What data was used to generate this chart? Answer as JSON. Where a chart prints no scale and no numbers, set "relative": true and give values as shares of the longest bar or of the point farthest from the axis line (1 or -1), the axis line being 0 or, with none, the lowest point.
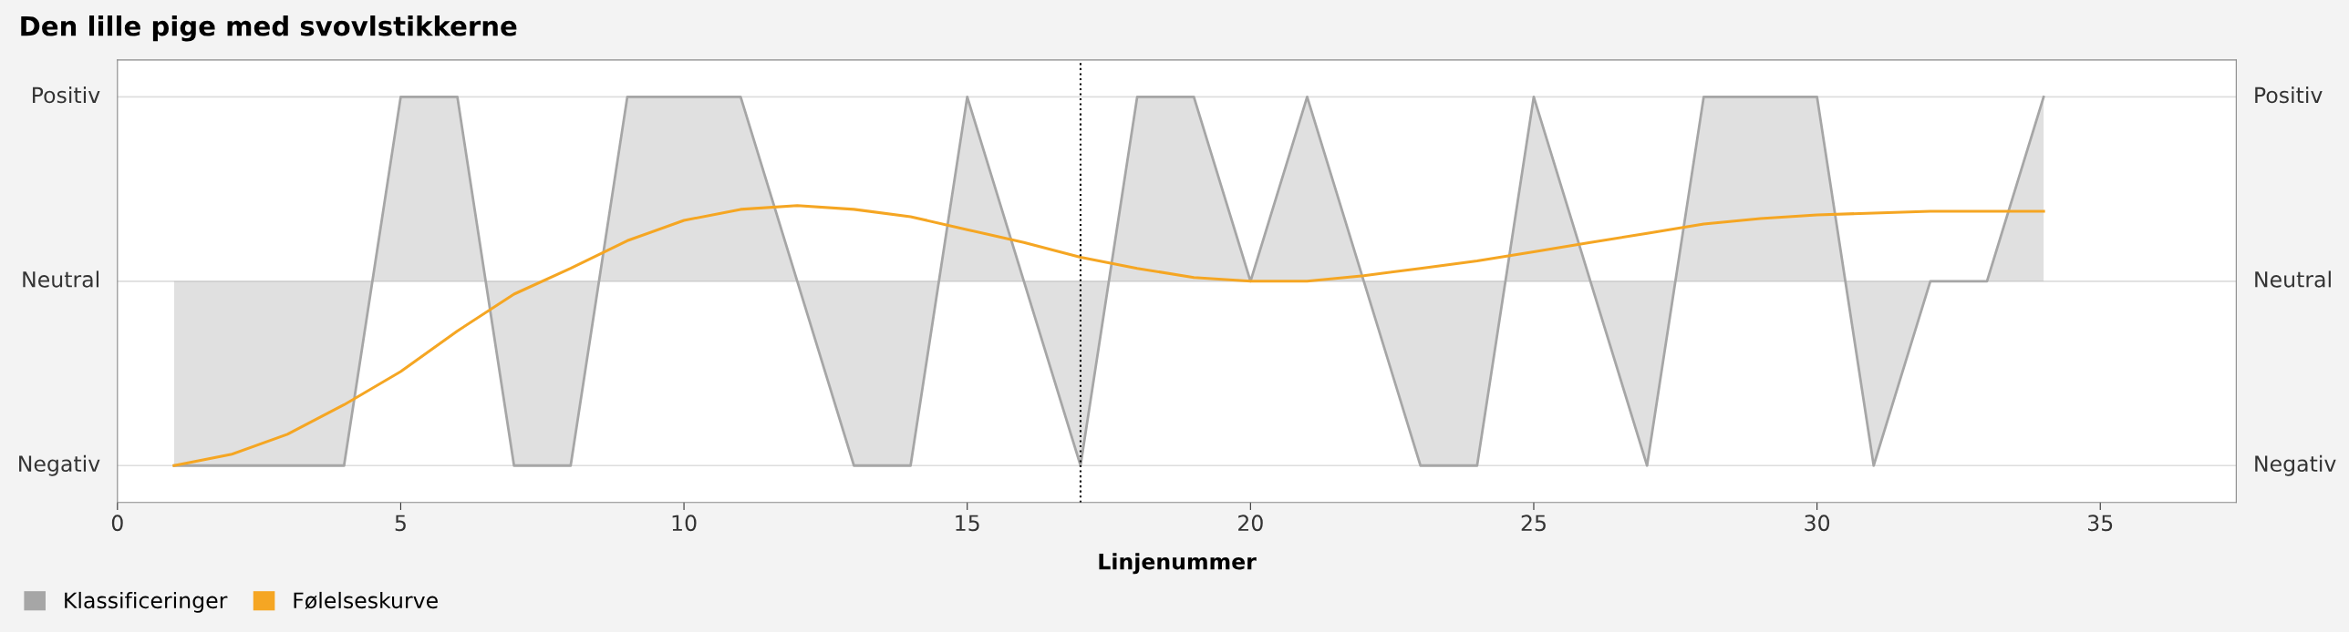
{
  "chart_data": {
    "type": "line",
    "title": "Den lille pige med svovlstikkerne",
    "xlabel": "Linjenummer",
    "x": [
      1,
      2,
      3,
      4,
      5,
      6,
      7,
      8,
      9,
      10,
      11,
      12,
      13,
      14,
      15,
      16,
      17,
      18,
      19,
      20,
      21,
      22,
      23,
      24,
      25,
      26,
      27,
      28,
      29,
      30,
      31,
      32,
      33,
      34
    ],
    "series": [
      {
        "name": "Klassificeringer",
        "type": "area",
        "color": "#a6a6a6",
        "values": [
          -1,
          -1,
          -1,
          -1,
          1,
          1,
          -1,
          -1,
          1,
          1,
          1,
          0,
          -1,
          -1,
          1,
          0,
          -1,
          1,
          1,
          0,
          1,
          0,
          -1,
          -1,
          1,
          0,
          -1,
          1,
          1,
          1,
          -1,
          0,
          0,
          1
        ]
      },
      {
        "name": "Følelseskurve",
        "color": "#f5a623",
        "values": [
          -1,
          -0.94,
          -0.83,
          -0.67,
          -0.49,
          -0.27,
          -0.07,
          0.07,
          0.22,
          0.33,
          0.39,
          0.41,
          0.39,
          0.35,
          0.28,
          0.21,
          0.13,
          0.07,
          0.02,
          0,
          0,
          0.03,
          0.07,
          0.11,
          0.16,
          0.21,
          0.26,
          0.31,
          0.34,
          0.36,
          0.37,
          0.38,
          0.38,
          0.38
        ]
      }
    ],
    "xlim": [
      0,
      37.4
    ],
    "xticks": [
      0,
      5,
      10,
      15,
      20,
      25,
      30,
      35
    ],
    "relative": true,
    "ref_lines": [
      {
        "axis": "x",
        "value": 17,
        "color": "#000000",
        "line_style": "dotted"
      },
      {
        "axis": "y",
        "value": 1,
        "label": "Positiv",
        "color": "#dddddd",
        "line_style": "solid"
      },
      {
        "axis": "y",
        "value": 0,
        "label": "Neutral",
        "color": "#dddddd",
        "line_style": "solid"
      },
      {
        "axis": "y",
        "value": -1,
        "label": "Negativ",
        "color": "#dddddd",
        "line_style": "solid"
      }
    ],
    "legend": "bottom left",
    "marker": "none",
    "line_style": "solid"
  }
}
